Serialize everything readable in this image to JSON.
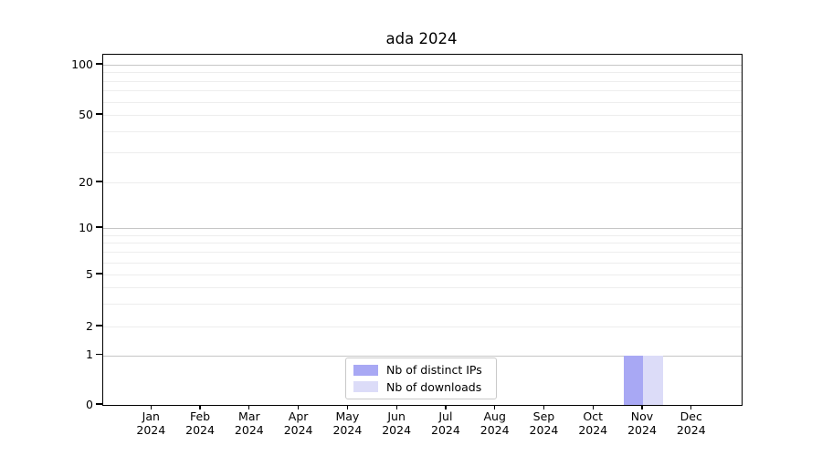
{
  "chart_data": {
    "type": "bar",
    "title": "ada 2024",
    "categories": [
      "Jan",
      "Feb",
      "Mar",
      "Apr",
      "May",
      "Jun",
      "Jul",
      "Aug",
      "Sep",
      "Oct",
      "Nov",
      "Dec"
    ],
    "x_tick_year": "2024",
    "series": [
      {
        "name": "Nb of distinct IPs",
        "color": "#a8a8f4",
        "values": [
          0,
          0,
          0,
          0,
          0,
          0,
          0,
          0,
          0,
          0,
          1,
          0
        ]
      },
      {
        "name": "Nb of downloads",
        "color": "#dcdcf8",
        "values": [
          0,
          0,
          0,
          0,
          0,
          0,
          0,
          0,
          0,
          0,
          1,
          0
        ]
      }
    ],
    "xlabel": "",
    "ylabel": "",
    "yscale": "symlog",
    "ylim": [
      0,
      117
    ],
    "yticks": [
      0,
      1,
      2,
      5,
      10,
      20,
      50,
      100
    ],
    "grid": {
      "major_values": [
        1,
        10,
        100
      ],
      "minor_values": [
        2,
        3,
        4,
        5,
        6,
        7,
        8,
        9,
        20,
        30,
        40,
        50,
        60,
        70,
        80,
        90
      ],
      "major_color": "#c6c6c6",
      "minor_color": "#ededed"
    },
    "legend": {
      "position": "bottom-center",
      "entries": [
        "Nb of distinct IPs",
        "Nb of downloads"
      ]
    }
  },
  "colors": {
    "axis": "#000000",
    "text": "#000000",
    "background": "#ffffff"
  }
}
